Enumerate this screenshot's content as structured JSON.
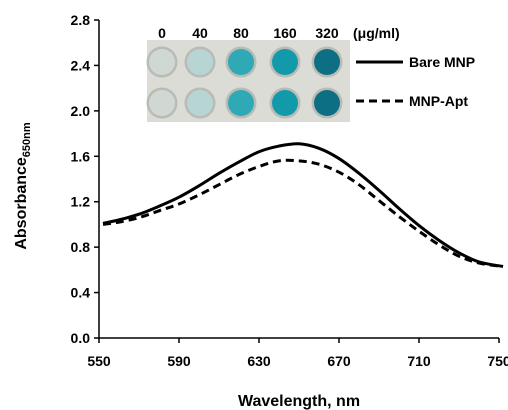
{
  "chart_data": {
    "type": "line",
    "xlabel": "Wavelength, nm",
    "ylabel_main": "Absorbance",
    "ylabel_sub": "650nm",
    "xlim": [
      550,
      750
    ],
    "ylim": [
      0,
      2.8
    ],
    "x_ticks": [
      "550",
      "590",
      "630",
      "670",
      "710",
      "750"
    ],
    "y_ticks": [
      "0.0",
      "0.4",
      "0.8",
      "1.2",
      "1.6",
      "2.0",
      "2.4",
      "2.8"
    ],
    "legend_position": "top-right",
    "series": [
      {
        "name": "Bare MNP",
        "style": "solid",
        "x": [
          552,
          560,
          570,
          580,
          590,
          600,
          610,
          620,
          630,
          640,
          650,
          660,
          670,
          680,
          690,
          700,
          710,
          720,
          730,
          740,
          752
        ],
        "y": [
          1.01,
          1.04,
          1.09,
          1.16,
          1.24,
          1.34,
          1.45,
          1.55,
          1.64,
          1.69,
          1.71,
          1.67,
          1.58,
          1.45,
          1.3,
          1.14,
          0.99,
          0.86,
          0.75,
          0.67,
          0.63
        ]
      },
      {
        "name": "MNP-Apt",
        "style": "dashed",
        "x": [
          552,
          560,
          570,
          580,
          590,
          600,
          610,
          620,
          630,
          640,
          650,
          660,
          670,
          680,
          690,
          700,
          710,
          720,
          730,
          740,
          752
        ],
        "y": [
          1.0,
          1.02,
          1.06,
          1.12,
          1.18,
          1.26,
          1.35,
          1.44,
          1.51,
          1.56,
          1.56,
          1.53,
          1.46,
          1.35,
          1.21,
          1.07,
          0.94,
          0.82,
          0.72,
          0.66,
          0.63
        ]
      }
    ],
    "inset": {
      "concentrations": [
        "0",
        "40",
        "80",
        "160",
        "320"
      ],
      "unit": "(μg/ml)",
      "well_colors": [
        "#cfd8d2",
        "#b6d5d3",
        "#2fa9b5",
        "#129aaa",
        "#0d6f84"
      ],
      "rows": 2
    }
  }
}
